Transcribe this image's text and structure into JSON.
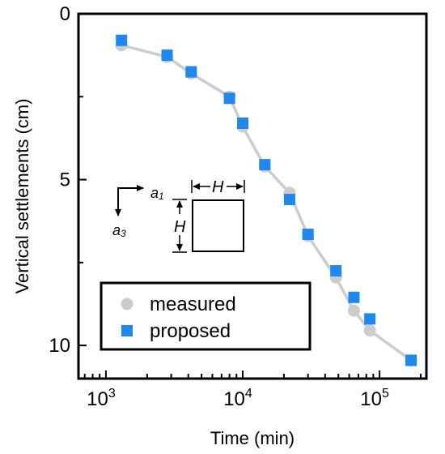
{
  "chart_data": {
    "type": "scatter",
    "xlabel": "Time (min)",
    "ylabel": "Vertical settlements (cm)",
    "x_scale": "log",
    "xlim": [
      630,
      220000
    ],
    "ylim": [
      0,
      11
    ],
    "y_inverted": true,
    "grid": false,
    "legend_position": "bottom-left",
    "x_ticks": [
      {
        "value": 1000,
        "base": "10",
        "exp": "3"
      },
      {
        "value": 10000,
        "base": "10",
        "exp": "4"
      },
      {
        "value": 100000,
        "base": "10",
        "exp": "5"
      }
    ],
    "y_ticks": [
      {
        "value": 0,
        "label": "0"
      },
      {
        "value": 5,
        "label": "5"
      },
      {
        "value": 10,
        "label": "10"
      }
    ],
    "series": [
      {
        "name": "measured",
        "marker": "circle",
        "color": "#cccccc",
        "line_color": "#cccccc",
        "x": [
          1300,
          2800,
          4200,
          8000,
          10000,
          14500,
          22000,
          30000,
          48000,
          65000,
          85000,
          170000
        ],
        "y": [
          0.95,
          1.3,
          1.8,
          2.5,
          3.4,
          4.6,
          5.4,
          6.7,
          7.95,
          8.95,
          9.55,
          10.45
        ]
      },
      {
        "name": "proposed",
        "marker": "square",
        "color": "#1e88ee",
        "x": [
          1300,
          2800,
          4200,
          8000,
          10000,
          14500,
          22000,
          30000,
          48000,
          65000,
          85000,
          170000
        ],
        "y": [
          0.8,
          1.25,
          1.75,
          2.55,
          3.3,
          4.55,
          5.6,
          6.65,
          7.75,
          8.55,
          9.2,
          10.45
        ]
      }
    ],
    "inset": {
      "label_a1": "a",
      "sub_a1": "1",
      "label_a3": "a",
      "sub_a3": "3",
      "label_h_top": "H",
      "label_h_left": "H"
    }
  }
}
